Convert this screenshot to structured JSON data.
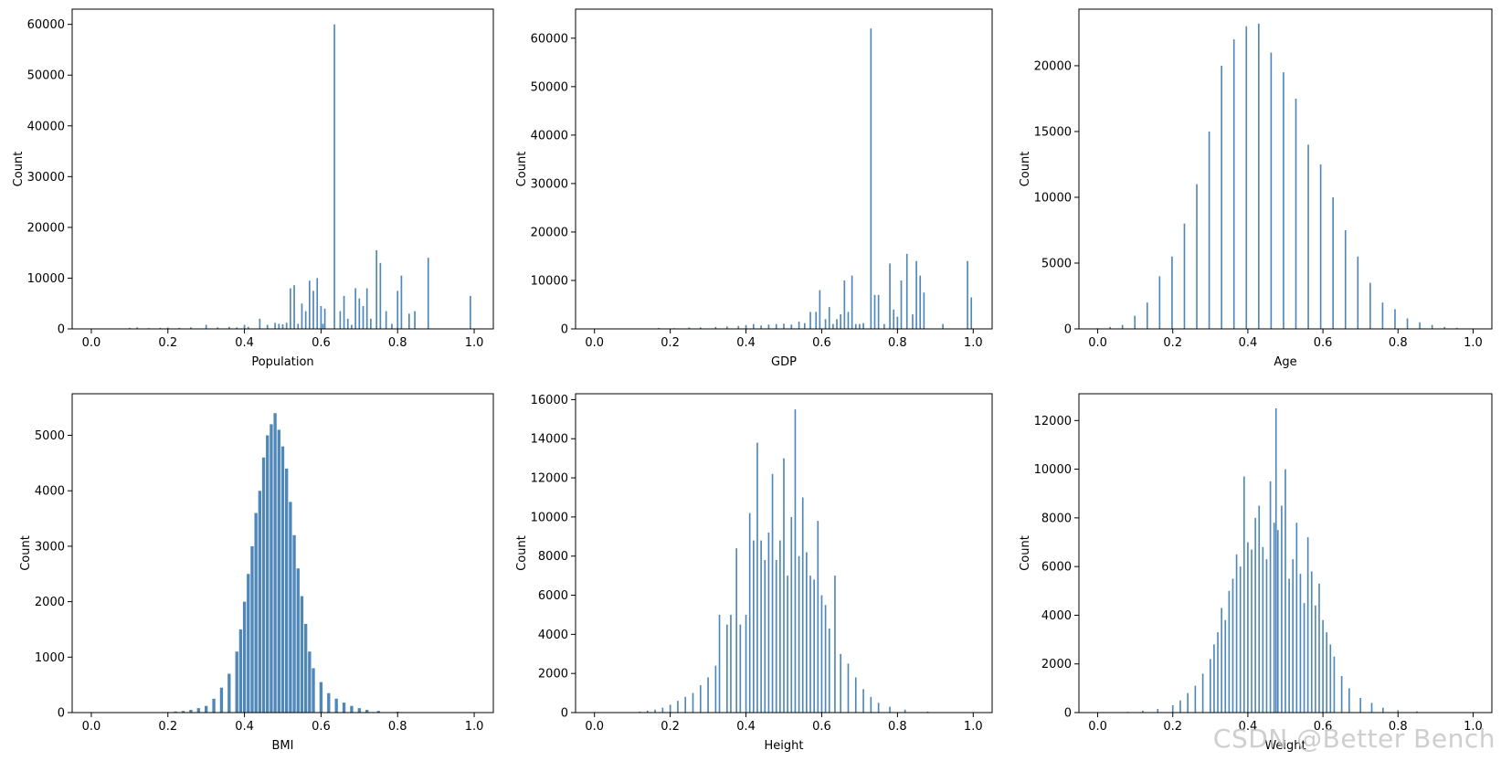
{
  "watermark": "CSDN @Better Bench",
  "colors": {
    "bar": "#4682b4",
    "axis": "#000000"
  },
  "chart_data": [
    {
      "type": "bar",
      "xlabel": "Population",
      "ylabel": "Count",
      "xlim": [
        -0.05,
        1.05
      ],
      "ylim": [
        0,
        63000
      ],
      "xticks": [
        0.0,
        0.2,
        0.4,
        0.6,
        0.8,
        1.0
      ],
      "xtick_labels": [
        "0.0",
        "0.2",
        "0.4",
        "0.6",
        "0.8",
        "1.0"
      ],
      "yticks": [
        0,
        10000,
        20000,
        30000,
        40000,
        50000,
        60000
      ],
      "ytick_labels": [
        "0",
        "10000",
        "20000",
        "30000",
        "40000",
        "50000",
        "60000"
      ],
      "bin_width": 0.004,
      "x": [
        0.1,
        0.12,
        0.15,
        0.18,
        0.2,
        0.23,
        0.26,
        0.3,
        0.33,
        0.36,
        0.38,
        0.4,
        0.41,
        0.44,
        0.46,
        0.48,
        0.49,
        0.5,
        0.51,
        0.52,
        0.53,
        0.54,
        0.55,
        0.56,
        0.57,
        0.58,
        0.59,
        0.6,
        0.605,
        0.61,
        0.635,
        0.65,
        0.66,
        0.67,
        0.68,
        0.69,
        0.7,
        0.71,
        0.72,
        0.73,
        0.745,
        0.755,
        0.77,
        0.785,
        0.8,
        0.81,
        0.83,
        0.845,
        0.88,
        0.99
      ],
      "values": [
        200,
        300,
        150,
        200,
        250,
        200,
        300,
        800,
        300,
        400,
        300,
        800,
        400,
        2000,
        800,
        1200,
        1000,
        900,
        1200,
        8000,
        8600,
        1000,
        5000,
        3500,
        9500,
        7500,
        10000,
        4500,
        1000,
        4000,
        60000,
        3500,
        6500,
        2000,
        800,
        8000,
        6000,
        4500,
        8000,
        2000,
        15500,
        13000,
        3500,
        1000,
        7500,
        10500,
        3000,
        3500,
        14000,
        6500
      ]
    },
    {
      "type": "bar",
      "xlabel": "GDP",
      "ylabel": "Count",
      "xlim": [
        -0.05,
        1.05
      ],
      "ylim": [
        0,
        66000
      ],
      "xticks": [
        0.0,
        0.2,
        0.4,
        0.6,
        0.8,
        1.0
      ],
      "xtick_labels": [
        "0.0",
        "0.2",
        "0.4",
        "0.6",
        "0.8",
        "1.0"
      ],
      "yticks": [
        0,
        10000,
        20000,
        30000,
        40000,
        50000,
        60000
      ],
      "ytick_labels": [
        "0",
        "10000",
        "20000",
        "30000",
        "40000",
        "50000",
        "60000"
      ],
      "bin_width": 0.004,
      "x": [
        0.17,
        0.21,
        0.25,
        0.28,
        0.32,
        0.35,
        0.38,
        0.4,
        0.42,
        0.44,
        0.46,
        0.48,
        0.5,
        0.52,
        0.54,
        0.555,
        0.57,
        0.585,
        0.595,
        0.61,
        0.62,
        0.63,
        0.64,
        0.65,
        0.66,
        0.67,
        0.68,
        0.69,
        0.7,
        0.71,
        0.73,
        0.74,
        0.75,
        0.765,
        0.78,
        0.79,
        0.8,
        0.81,
        0.825,
        0.84,
        0.85,
        0.86,
        0.87,
        0.92,
        0.985,
        0.995
      ],
      "values": [
        200,
        150,
        300,
        300,
        400,
        500,
        600,
        800,
        1000,
        700,
        900,
        1000,
        1100,
        900,
        1500,
        1200,
        3500,
        3500,
        8000,
        2000,
        4500,
        1000,
        2000,
        3000,
        10000,
        3500,
        11000,
        1000,
        1000,
        1200,
        62000,
        7000,
        7000,
        1000,
        13500,
        4000,
        2500,
        10000,
        15500,
        3000,
        14000,
        11000,
        7500,
        1000,
        14000,
        6500
      ]
    },
    {
      "type": "bar",
      "xlabel": "Age",
      "ylabel": "Count",
      "xlim": [
        -0.05,
        1.05
      ],
      "ylim": [
        0,
        24300
      ],
      "xticks": [
        0.0,
        0.2,
        0.4,
        0.6,
        0.8,
        1.0
      ],
      "xtick_labels": [
        "0.0",
        "0.2",
        "0.4",
        "0.6",
        "0.8",
        "1.0"
      ],
      "yticks": [
        0,
        5000,
        10000,
        15000,
        20000
      ],
      "ytick_labels": [
        "0",
        "5000",
        "10000",
        "15000",
        "20000"
      ],
      "bin_width": 0.004,
      "x": [
        0.0,
        0.033,
        0.066,
        0.099,
        0.132,
        0.165,
        0.198,
        0.231,
        0.264,
        0.297,
        0.33,
        0.363,
        0.396,
        0.429,
        0.462,
        0.495,
        0.528,
        0.561,
        0.594,
        0.627,
        0.66,
        0.693,
        0.726,
        0.759,
        0.792,
        0.825,
        0.858,
        0.891,
        0.924,
        0.957,
        0.99
      ],
      "values": [
        50,
        150,
        300,
        1000,
        2000,
        4000,
        5500,
        8000,
        11000,
        15000,
        20000,
        22000,
        23000,
        23200,
        21000,
        19500,
        17500,
        14000,
        12500,
        10000,
        7500,
        5500,
        3500,
        2000,
        1500,
        800,
        500,
        300,
        150,
        80,
        40
      ]
    },
    {
      "type": "bar",
      "xlabel": "BMI",
      "ylabel": "Count",
      "xlim": [
        -0.05,
        1.05
      ],
      "ylim": [
        0,
        5750
      ],
      "xticks": [
        0.0,
        0.2,
        0.4,
        0.6,
        0.8,
        1.0
      ],
      "xtick_labels": [
        "0.0",
        "0.2",
        "0.4",
        "0.6",
        "0.8",
        "1.0"
      ],
      "yticks": [
        0,
        1000,
        2000,
        3000,
        4000,
        5000
      ],
      "ytick_labels": [
        "0",
        "1000",
        "2000",
        "3000",
        "4000",
        "5000"
      ],
      "bin_width": 0.008,
      "x": [
        0.2,
        0.22,
        0.24,
        0.26,
        0.28,
        0.3,
        0.32,
        0.34,
        0.36,
        0.38,
        0.39,
        0.4,
        0.41,
        0.42,
        0.43,
        0.44,
        0.45,
        0.46,
        0.47,
        0.48,
        0.49,
        0.5,
        0.51,
        0.52,
        0.53,
        0.54,
        0.55,
        0.56,
        0.57,
        0.58,
        0.6,
        0.62,
        0.64,
        0.66,
        0.68,
        0.7,
        0.72,
        0.75,
        0.8,
        0.85
      ],
      "values": [
        10,
        20,
        30,
        50,
        80,
        120,
        250,
        450,
        700,
        1100,
        1500,
        2000,
        2500,
        3000,
        3600,
        4000,
        4600,
        5000,
        5200,
        5400,
        5100,
        4800,
        4400,
        3800,
        3200,
        2600,
        2100,
        1600,
        1100,
        800,
        550,
        350,
        250,
        180,
        120,
        80,
        50,
        30,
        15,
        8
      ]
    },
    {
      "type": "bar",
      "xlabel": "Height",
      "ylabel": "Count",
      "xlim": [
        -0.05,
        1.05
      ],
      "ylim": [
        0,
        16300
      ],
      "xticks": [
        0.0,
        0.2,
        0.4,
        0.6,
        0.8,
        1.0
      ],
      "xtick_labels": [
        "0.0",
        "0.2",
        "0.4",
        "0.6",
        "0.8",
        "1.0"
      ],
      "yticks": [
        0,
        2000,
        4000,
        6000,
        8000,
        10000,
        12000,
        14000,
        16000
      ],
      "ytick_labels": [
        "0",
        "2000",
        "4000",
        "6000",
        "8000",
        "10000",
        "12000",
        "14000",
        "16000"
      ],
      "bin_width": 0.004,
      "x": [
        0.1,
        0.12,
        0.14,
        0.16,
        0.18,
        0.2,
        0.22,
        0.24,
        0.26,
        0.28,
        0.3,
        0.32,
        0.33,
        0.35,
        0.36,
        0.375,
        0.385,
        0.4,
        0.41,
        0.42,
        0.43,
        0.44,
        0.45,
        0.46,
        0.47,
        0.48,
        0.49,
        0.5,
        0.51,
        0.52,
        0.53,
        0.54,
        0.55,
        0.56,
        0.57,
        0.58,
        0.59,
        0.6,
        0.61,
        0.62,
        0.635,
        0.65,
        0.67,
        0.69,
        0.71,
        0.73,
        0.75,
        0.78,
        0.82,
        0.88
      ],
      "values": [
        20,
        50,
        100,
        150,
        250,
        400,
        600,
        800,
        1000,
        1400,
        1800,
        2400,
        5000,
        4500,
        5000,
        8400,
        4500,
        5000,
        10200,
        8800,
        13800,
        8800,
        7800,
        9200,
        12200,
        7800,
        8800,
        13000,
        7000,
        10000,
        15500,
        8000,
        11000,
        8200,
        7000,
        6800,
        9800,
        6000,
        5500,
        4300,
        7000,
        3000,
        2500,
        1800,
        1200,
        800,
        500,
        300,
        150,
        50
      ]
    },
    {
      "type": "bar",
      "xlabel": "Weight",
      "ylabel": "Count",
      "xlim": [
        -0.05,
        1.05
      ],
      "ylim": [
        0,
        13100
      ],
      "xticks": [
        0.0,
        0.2,
        0.4,
        0.6,
        0.8,
        1.0
      ],
      "xtick_labels": [
        "0.0",
        "0.2",
        "0.4",
        "0.6",
        "0.8",
        "1.0"
      ],
      "yticks": [
        0,
        2000,
        4000,
        6000,
        8000,
        10000,
        12000
      ],
      "ytick_labels": [
        "0",
        "2000",
        "4000",
        "6000",
        "8000",
        "10000",
        "12000"
      ],
      "bin_width": 0.004,
      "x": [
        0.08,
        0.12,
        0.16,
        0.2,
        0.22,
        0.24,
        0.26,
        0.28,
        0.3,
        0.31,
        0.32,
        0.33,
        0.34,
        0.35,
        0.36,
        0.37,
        0.38,
        0.39,
        0.4,
        0.41,
        0.42,
        0.43,
        0.44,
        0.45,
        0.46,
        0.47,
        0.475,
        0.48,
        0.49,
        0.5,
        0.51,
        0.52,
        0.53,
        0.54,
        0.55,
        0.56,
        0.57,
        0.58,
        0.59,
        0.6,
        0.61,
        0.62,
        0.63,
        0.65,
        0.67,
        0.7,
        0.73,
        0.76,
        0.8,
        0.85
      ],
      "values": [
        30,
        80,
        150,
        300,
        500,
        800,
        1100,
        1600,
        2200,
        2800,
        3300,
        4300,
        3800,
        5000,
        5500,
        6500,
        6000,
        9700,
        7000,
        6700,
        8000,
        8500,
        6800,
        6300,
        9500,
        7800,
        12500,
        7500,
        8500,
        10000,
        5500,
        6300,
        7800,
        5700,
        4500,
        7200,
        5800,
        4400,
        5300,
        3800,
        3300,
        2800,
        2300,
        1500,
        1000,
        600,
        400,
        200,
        100,
        50
      ]
    }
  ]
}
